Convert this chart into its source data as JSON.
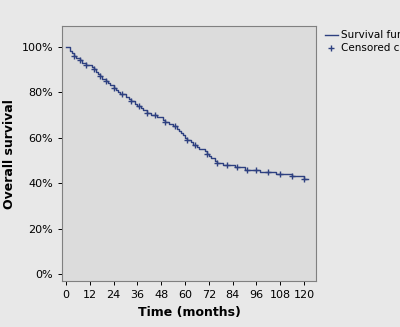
{
  "title": "",
  "xlabel": "Time (months)",
  "ylabel": "Overall survival",
  "xlim": [
    -2,
    126
  ],
  "ylim": [
    -0.03,
    1.09
  ],
  "xticks": [
    0,
    12,
    24,
    36,
    48,
    60,
    72,
    84,
    96,
    108,
    120
  ],
  "yticks": [
    0.0,
    0.2,
    0.4,
    0.6,
    0.8,
    1.0
  ],
  "ytick_labels": [
    "0%",
    "20%",
    "40%",
    "60%",
    "80%",
    "100%"
  ],
  "line_color": "#2e4080",
  "censor_color": "#2e4080",
  "plot_bg_color": "#dcdcdc",
  "fig_bg_color": "#e8e8e8",
  "survival_times": [
    0,
    2,
    3,
    4,
    5,
    6,
    7,
    8,
    9,
    10,
    11,
    12,
    13,
    14,
    15,
    16,
    17,
    18,
    19,
    20,
    21,
    22,
    23,
    24,
    25,
    26,
    27,
    28,
    29,
    30,
    32,
    33,
    34,
    35,
    36,
    37,
    38,
    39,
    40,
    41,
    42,
    43,
    44,
    45,
    46,
    47,
    48,
    49,
    50,
    51,
    52,
    54,
    55,
    56,
    57,
    58,
    59,
    60,
    61,
    62,
    63,
    64,
    65,
    66,
    67,
    68,
    70,
    71,
    72,
    73,
    74,
    75,
    76,
    77,
    78,
    79,
    80,
    81,
    82,
    83,
    84,
    85,
    86,
    88,
    90,
    91,
    92,
    93,
    95,
    96,
    98,
    100,
    102,
    104,
    106,
    108,
    110,
    112,
    114,
    116,
    118,
    120,
    122
  ],
  "survival_probs": [
    1.0,
    0.98,
    0.97,
    0.96,
    0.95,
    0.95,
    0.94,
    0.93,
    0.93,
    0.92,
    0.92,
    0.92,
    0.91,
    0.9,
    0.89,
    0.88,
    0.87,
    0.86,
    0.86,
    0.85,
    0.84,
    0.83,
    0.83,
    0.82,
    0.81,
    0.8,
    0.79,
    0.79,
    0.79,
    0.78,
    0.77,
    0.76,
    0.76,
    0.75,
    0.74,
    0.74,
    0.73,
    0.72,
    0.72,
    0.71,
    0.71,
    0.7,
    0.7,
    0.7,
    0.69,
    0.69,
    0.69,
    0.68,
    0.67,
    0.67,
    0.66,
    0.65,
    0.65,
    0.64,
    0.63,
    0.62,
    0.61,
    0.6,
    0.59,
    0.59,
    0.58,
    0.57,
    0.57,
    0.56,
    0.55,
    0.55,
    0.54,
    0.53,
    0.52,
    0.51,
    0.51,
    0.5,
    0.49,
    0.49,
    0.49,
    0.48,
    0.48,
    0.48,
    0.48,
    0.48,
    0.48,
    0.47,
    0.47,
    0.47,
    0.46,
    0.46,
    0.46,
    0.46,
    0.46,
    0.46,
    0.45,
    0.45,
    0.45,
    0.45,
    0.44,
    0.44,
    0.44,
    0.44,
    0.43,
    0.43,
    0.43,
    0.42,
    0.42
  ],
  "censor_times": [
    4,
    7,
    10,
    14,
    17,
    20,
    24,
    28,
    33,
    37,
    41,
    45,
    50,
    55,
    61,
    65,
    71,
    76,
    81,
    86,
    91,
    96,
    102,
    108,
    114,
    120
  ],
  "censor_probs": [
    0.96,
    0.94,
    0.92,
    0.9,
    0.87,
    0.85,
    0.82,
    0.79,
    0.76,
    0.74,
    0.71,
    0.7,
    0.67,
    0.65,
    0.59,
    0.57,
    0.53,
    0.49,
    0.48,
    0.47,
    0.46,
    0.46,
    0.45,
    0.44,
    0.43,
    0.42
  ],
  "legend_survival": "Survival function",
  "legend_censored": "Censored cases",
  "tick_fontsize": 8,
  "label_fontsize": 9,
  "legend_fontsize": 7.5
}
